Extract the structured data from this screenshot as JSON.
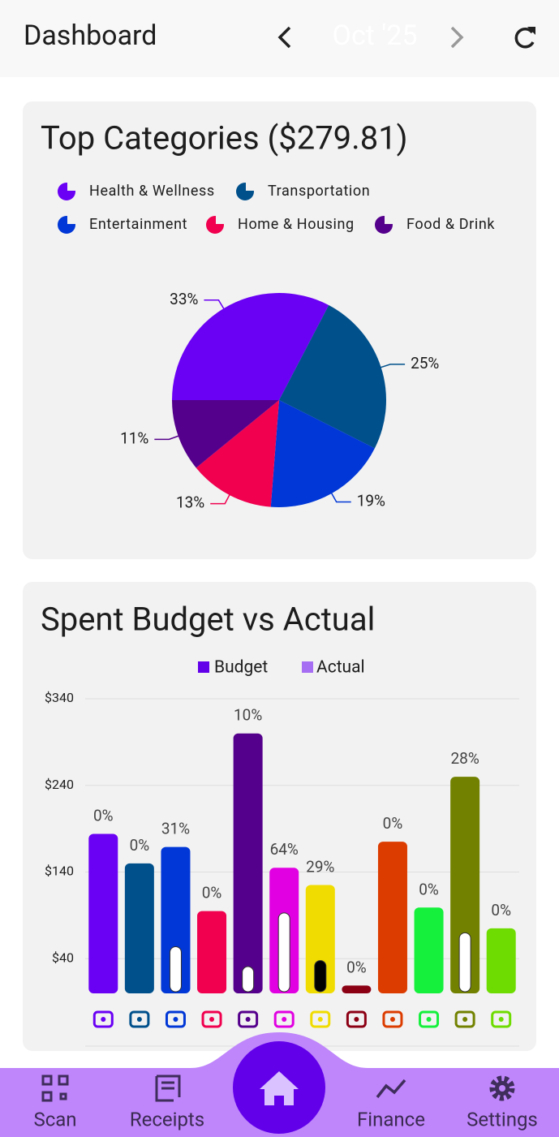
{
  "header": {
    "title": "Dashboard",
    "month": "Oct '25"
  },
  "chart_data": [
    {
      "type": "pie",
      "title": "Top Categories ($279.81)",
      "categories": [
        "Health & Wellness",
        "Transportation",
        "Entertainment",
        "Home & Housing",
        "Food & Drink"
      ],
      "values": [
        33,
        25,
        19,
        13,
        11
      ],
      "value_labels": [
        "33%",
        "25%",
        "19%",
        "13%",
        "11%"
      ],
      "colors": [
        "#6a00f4",
        "#00508c",
        "#0037d6",
        "#f0004f",
        "#55008c"
      ]
    },
    {
      "type": "bar",
      "title": "Spent Budget vs Actual",
      "ylim": [
        0,
        340
      ],
      "yticks": [
        {
          "value": 40,
          "label": "$40"
        },
        {
          "value": 140,
          "label": "$140"
        },
        {
          "value": 240,
          "label": "$240"
        },
        {
          "value": 340,
          "label": "$340"
        }
      ],
      "grid": true,
      "series": [
        {
          "name": "Budget",
          "color": "#6200ea",
          "values": [
            184,
            150,
            169,
            95,
            300,
            145,
            125,
            9,
            175,
            99,
            250,
            75
          ],
          "colors": [
            "#6a00f4",
            "#00508c",
            "#0037d6",
            "#f0004f",
            "#55008c",
            "#e100e1",
            "#f0dc00",
            "#8c0014",
            "#dc3c00",
            "#14f03c",
            "#728200",
            "#6edc00"
          ]
        },
        {
          "name": "Actual",
          "color": "#a66ef2",
          "values": [
            0,
            0,
            52,
            0,
            29,
            91,
            36,
            0,
            0,
            0,
            68,
            0
          ],
          "colors": [
            "#ffffff",
            "#ffffff",
            "#ffffff",
            "#ffffff",
            "#ffffff",
            "#ffffff",
            "#000000",
            "#ffffff",
            "#ffffff",
            "#ffffff",
            "#ffffff",
            "#ffffff"
          ]
        }
      ],
      "bar_labels": [
        "0%",
        "0%",
        "31%",
        "0%",
        "10%",
        "64%",
        "29%",
        "0%",
        "0%",
        "0%",
        "28%",
        "0%"
      ]
    }
  ],
  "nav": {
    "items": [
      "Scan",
      "Receipts",
      "Finance",
      "Settings"
    ]
  }
}
